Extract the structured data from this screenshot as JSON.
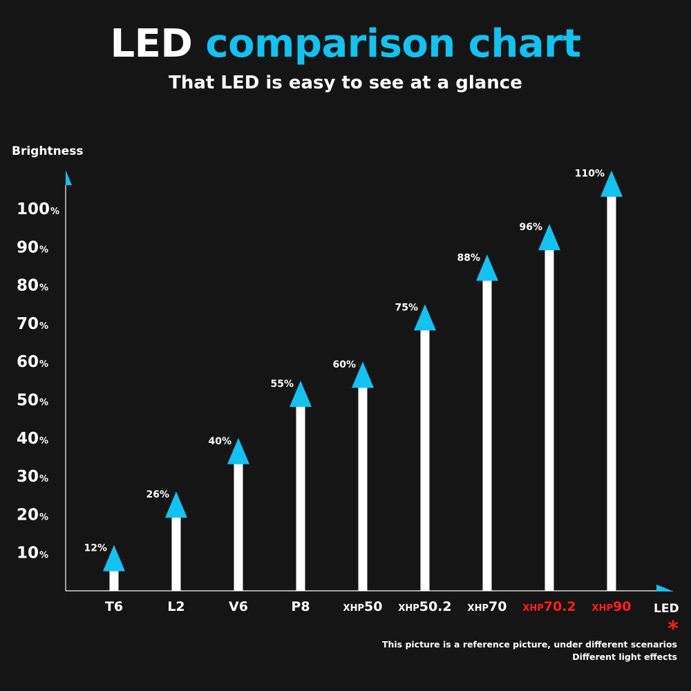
{
  "header": {
    "title_part1": "LED",
    "title_part2": "comparison chart",
    "subtitle": "That LED is easy to see at a glance"
  },
  "colors": {
    "background": "#151515",
    "accent": "#12c3f1",
    "bar": "#ffffff",
    "highlight": "#ff1d1d"
  },
  "footnote": {
    "star": "*",
    "line1": "This picture is a reference picture, under different scenarios",
    "line2": "Different light effects"
  },
  "chart_data": {
    "type": "bar",
    "title": "LED comparison chart",
    "subtitle": "That LED is easy to see at a glance",
    "ylabel": "Brightness",
    "xlabel": "LED",
    "ylim": [
      0,
      110
    ],
    "yticks": [
      10,
      20,
      30,
      40,
      50,
      60,
      70,
      80,
      90,
      100
    ],
    "ytick_suffix": "%",
    "categories": [
      {
        "prefix": "",
        "main": "T6",
        "highlight": false
      },
      {
        "prefix": "",
        "main": "L2",
        "highlight": false
      },
      {
        "prefix": "",
        "main": "V6",
        "highlight": false
      },
      {
        "prefix": "",
        "main": "P8",
        "highlight": false
      },
      {
        "prefix": "XHP",
        "main": "50",
        "highlight": false
      },
      {
        "prefix": "XHP",
        "main": "50.2",
        "highlight": false
      },
      {
        "prefix": "XHP",
        "main": "70",
        "highlight": false
      },
      {
        "prefix": "XHP",
        "main": "70.2",
        "highlight": true
      },
      {
        "prefix": "XHP",
        "main": "90",
        "highlight": true
      }
    ],
    "values": [
      12,
      26,
      40,
      55,
      60,
      75,
      88,
      96,
      110
    ],
    "value_labels": [
      "12%",
      "26%",
      "40%",
      "55%",
      "60%",
      "75%",
      "88%",
      "96%",
      "110%"
    ]
  }
}
